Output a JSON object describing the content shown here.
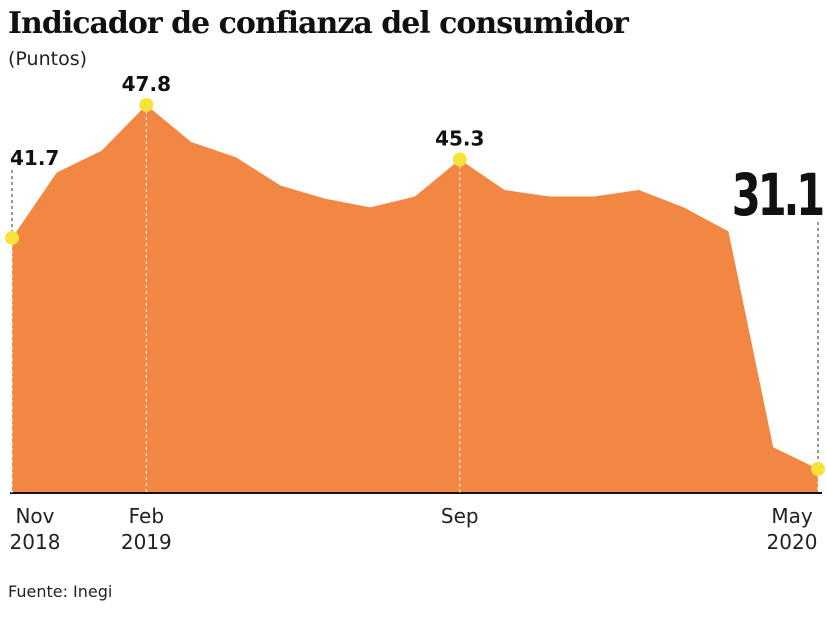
{
  "chart_data": {
    "type": "area",
    "title": "Indicador de confianza del consumidor",
    "subtitle": "(Puntos)",
    "source": "Fuente: Inegi",
    "categories": [
      "Nov 2018",
      null,
      null,
      "Feb 2019",
      null,
      null,
      null,
      null,
      null,
      null,
      "Sep",
      null,
      null,
      null,
      null,
      null,
      null,
      null,
      "May 2020"
    ],
    "values": [
      41.7,
      44.7,
      45.7,
      47.8,
      46.1,
      45.4,
      44.1,
      43.5,
      43.1,
      43.6,
      45.3,
      43.9,
      43.6,
      43.6,
      43.9,
      43.1,
      42.0,
      32.1,
      31.1
    ],
    "color": "#f28744",
    "marker_color": "#f7e23a",
    "ylim": [
      30,
      50
    ]
  }
}
